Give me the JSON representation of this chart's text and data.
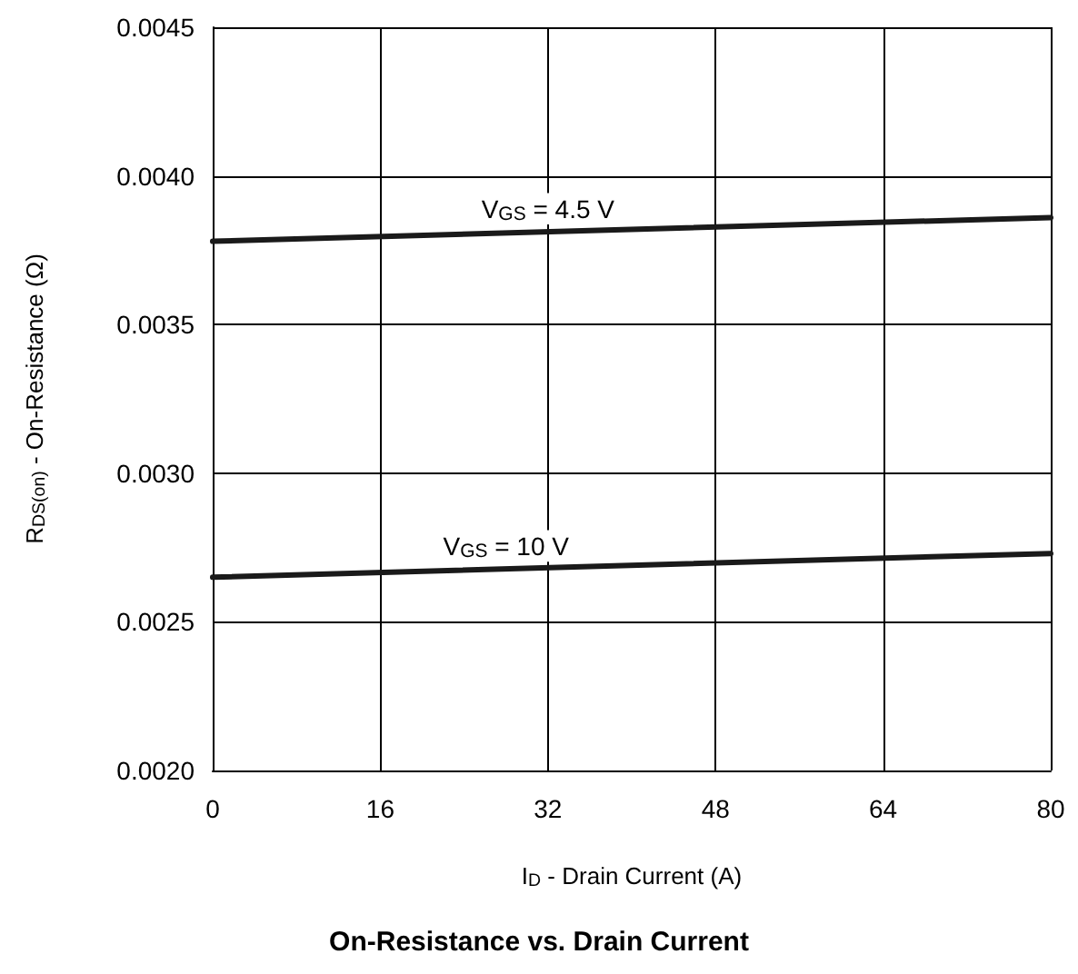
{
  "chart_data": {
    "type": "line",
    "title": "On-Resistance vs. Drain Current",
    "xlabel": "I$_{D}$ - Drain Current (A)",
    "ylabel": "R$_{DS(on)}$ - On-Resistance (Ω)",
    "x": [
      0,
      80
    ],
    "series": [
      {
        "name": "V$_{GS}$ = 4.5 V",
        "color": "#1a1a1a",
        "values": [
          0.00378,
          0.00386
        ]
      },
      {
        "name": "V$_{GS}$ = 10 V",
        "color": "#1a1a1a",
        "values": [
          0.00265,
          0.00273
        ]
      }
    ],
    "xlim": [
      0,
      80
    ],
    "xticks": [
      0,
      16,
      32,
      48,
      64,
      80
    ],
    "ylim": [
      0.002,
      0.0045
    ],
    "yticks": [
      {
        "value": 0.002,
        "label": "0.0020"
      },
      {
        "value": 0.0025,
        "label": "0.0025"
      },
      {
        "value": 0.003,
        "label": "0.0030"
      },
      {
        "value": 0.0035,
        "label": "0.0035"
      },
      {
        "value": 0.004,
        "label": "0.0040"
      },
      {
        "value": 0.0045,
        "label": "0.0045"
      }
    ],
    "grid": true,
    "marker": "none",
    "line_style": "solid"
  }
}
